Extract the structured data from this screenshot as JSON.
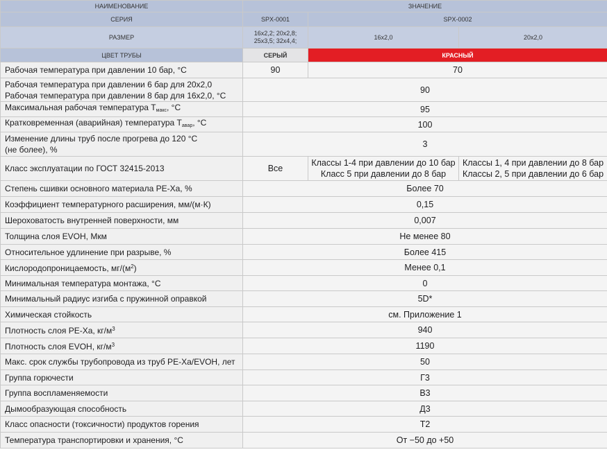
{
  "header": {
    "col_name": "НАИМЕНОВАНИЕ",
    "col_value": "ЗНАЧЕНИЕ",
    "series_label": "СЕРИЯ",
    "series_1": "SPX-0001",
    "series_2": "SPX-0002",
    "size_label": "РАЗМЕР",
    "size_1_line1": "16х2,2; 20х2,8;",
    "size_1_line2": "25х3,5; 32х4,4;",
    "size_2": "16х2,0",
    "size_3": "20х2,0",
    "color_label": "ЦВЕТ ТРУБЫ",
    "color_1": "СЕРЫЙ",
    "color_2": "КРАСНЫЙ",
    "red_color": "#e31e24"
  },
  "rows": {
    "r1": {
      "name": "Рабочая температура при давлении 10 бар, °С",
      "v1": "90",
      "v2": "70"
    },
    "r2": {
      "name1": "Рабочая температура при давлении 6 бар для 20х2,0",
      "name2": "Рабочая температура при давлении 8 бар для 16х2,0, °С",
      "v": "90"
    },
    "r3": {
      "name_a": "Максимальная рабочая температура Т",
      "sub": "макс",
      "name_b": ", °С",
      "v": "95"
    },
    "r4": {
      "name_a": "Кратковременная (аварийная) температура Т",
      "sub": "авар",
      "name_b": ", °С",
      "v": "100"
    },
    "r5": {
      "name1": "Изменение длины труб после прогрева до 120 °С",
      "name2": "(не более), %",
      "v": "3"
    },
    "r6": {
      "name": "Класс эксплуатации по ГОСТ 32415-2013",
      "v1": "Все",
      "v2_line1": "Классы 1-4 при давлении до 10 бар",
      "v2_line2": "Класс 5 при давлении до 8 бар",
      "v3_line1": "Классы 1, 4 при давлении до 8 бар",
      "v3_line2": "Классы 2, 5 при давлении до 6 бар"
    },
    "r7": {
      "name": "Степень сшивки основного материала PE-Xa, %",
      "v": "Более 70"
    },
    "r8": {
      "name": "Коэффициент температурного расширения, мм/(м·К)",
      "v": "0,15"
    },
    "r9": {
      "name": "Шероховатость внутренней поверхности, мм",
      "v": "0,007"
    },
    "r10": {
      "name": "Толщина слоя EVOH, Мкм",
      "v": "Не менее 80"
    },
    "r11": {
      "name": "Относительное удлинение при разрыве, %",
      "v": "Более 415"
    },
    "r12": {
      "name_a": "Кислородопроницаемость, мг/(м",
      "sup": "2",
      "name_b": ")",
      "v": "Менее 0,1"
    },
    "r13": {
      "name": "Минимальная температура монтажа, °С",
      "v": "0"
    },
    "r14": {
      "name": "Минимальный радиус изгиба с пружинной оправкой",
      "v": "5D*"
    },
    "r15": {
      "name": "Химическая стойкость",
      "v": "см. Приложение 1"
    },
    "r16": {
      "name_a": "Плотность слоя PE-Xa, кг/м",
      "sup": "3",
      "v": "940"
    },
    "r17": {
      "name_a": "Плотность слоя EVOH, кг/м",
      "sup": "3",
      "v": "1190"
    },
    "r18": {
      "name": "Макс. срок службы трубопровода из труб PE-Xa/EVOH, лет",
      "v": "50"
    },
    "r19": {
      "name": "Группа горючести",
      "v": "Г3"
    },
    "r20": {
      "name": "Группа воспламеняемости",
      "v": "В3"
    },
    "r21": {
      "name": "Дымообразующая способность",
      "v": "Д3"
    },
    "r22": {
      "name": "Класс опасности (токсичности) продуктов горения",
      "v": "Т2"
    },
    "r23": {
      "name": "Температура транспортировки и хранения, °С",
      "v": "От −50 до +50"
    }
  }
}
